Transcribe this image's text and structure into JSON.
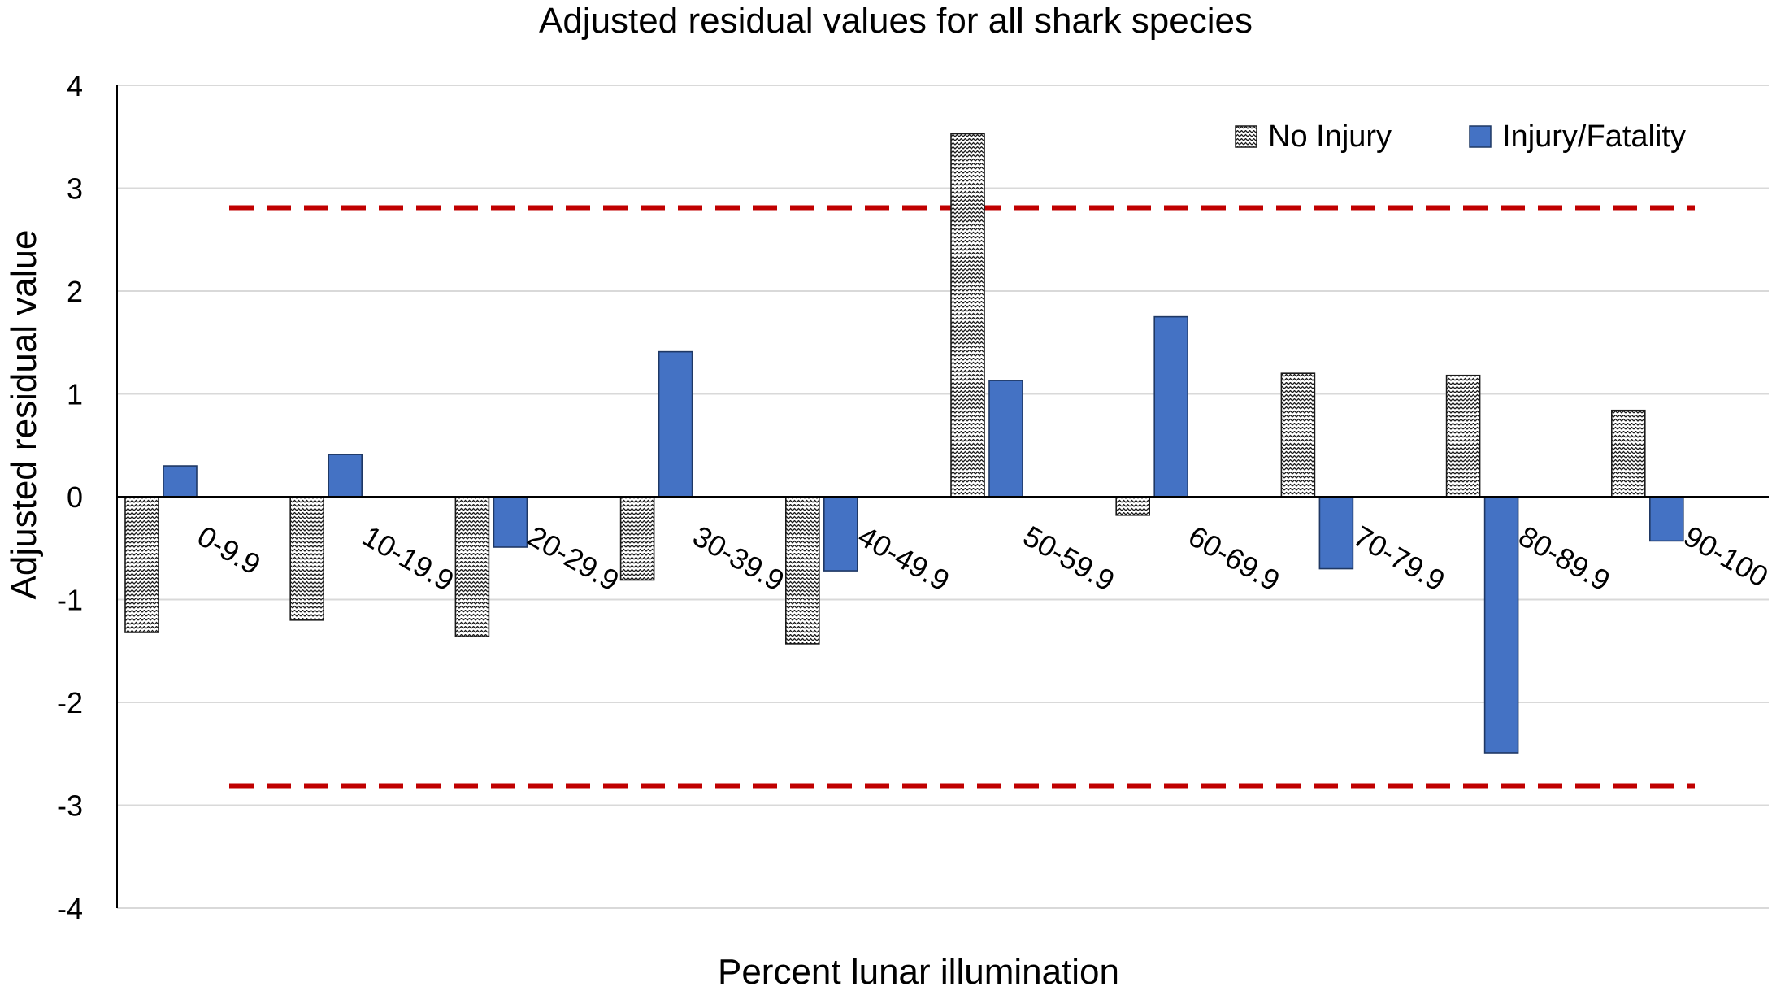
{
  "chart_data": {
    "type": "bar",
    "title": "Adjusted residual values for all shark species",
    "xlabel": "Percent lunar illumination",
    "ylabel": "Adjusted residual value",
    "ylim": [
      -4,
      4
    ],
    "yticks": [
      4,
      3,
      2,
      1,
      0,
      -1,
      -2,
      -3,
      -4
    ],
    "grid": true,
    "legend_position": "top-right",
    "categories": [
      "0-9.9",
      "10-19.9",
      "20-29.9",
      "30-39.9",
      "40-49.9",
      "50-59.9",
      "60-69.9",
      "70-79.9",
      "80-89.9",
      "90-100"
    ],
    "series": [
      {
        "name": "No Injury",
        "pattern": "zigzag",
        "color": "#ffffff",
        "values": [
          -1.32,
          -1.2,
          -1.36,
          -0.81,
          -1.43,
          3.53,
          -0.18,
          1.2,
          1.18,
          0.84
        ]
      },
      {
        "name": "Injury/Fatality",
        "color": "#4472c4",
        "values": [
          0.3,
          0.41,
          -0.49,
          1.41,
          -0.72,
          1.13,
          1.75,
          -0.7,
          -2.49,
          -0.43
        ]
      }
    ],
    "reference_lines": [
      2.81,
      -2.81
    ],
    "reference_line_color": "#c00000",
    "grid_color": "#d9d9d9",
    "axis_color": "#000000"
  }
}
